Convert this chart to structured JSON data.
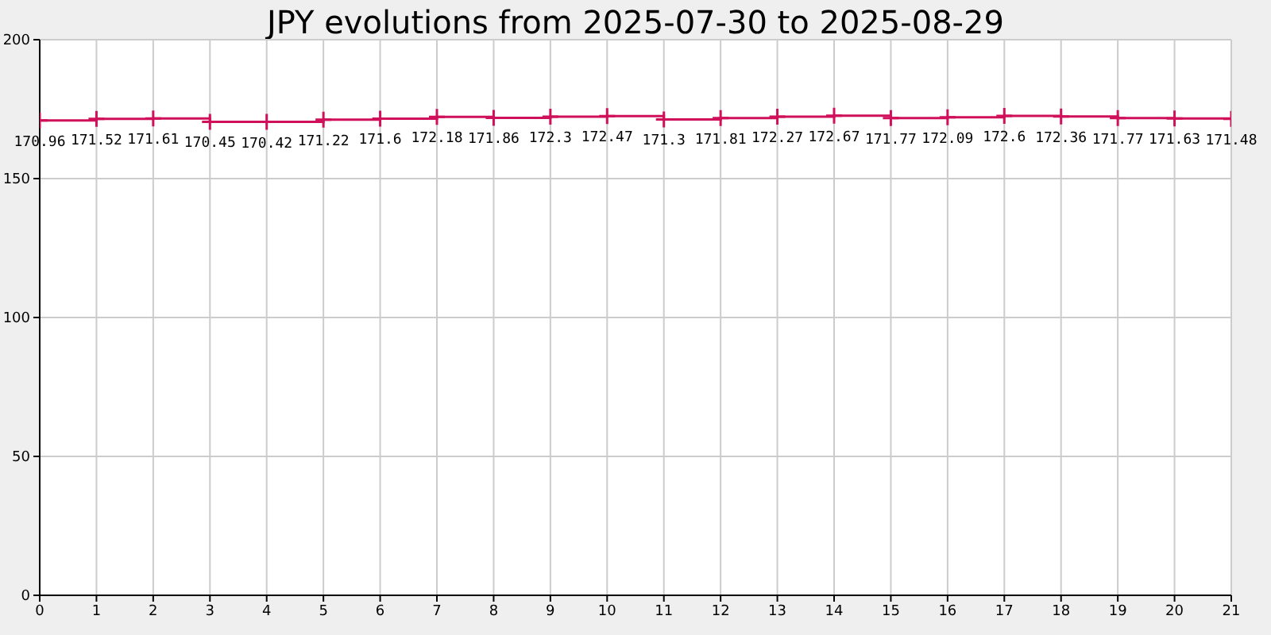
{
  "chart_data": {
    "type": "step",
    "title": "JPY evolutions from 2025-07-30 to 2025-08-29",
    "x": [
      0,
      1,
      2,
      3,
      4,
      5,
      6,
      7,
      8,
      9,
      10,
      11,
      12,
      13,
      14,
      15,
      16,
      17,
      18,
      19,
      20,
      21
    ],
    "series": [
      {
        "color": "#d0105a",
        "values": [
          170.96,
          171.52,
          171.61,
          170.45,
          170.42,
          171.22,
          171.6,
          172.18,
          171.86,
          172.3,
          172.47,
          171.3,
          171.81,
          172.27,
          172.67,
          171.77,
          172.09,
          172.6,
          172.36,
          171.77,
          171.63,
          171.48
        ]
      }
    ],
    "xlim": [
      0,
      21
    ],
    "xticks": [
      0,
      1,
      2,
      3,
      4,
      5,
      6,
      7,
      8,
      9,
      10,
      11,
      12,
      13,
      14,
      15,
      16,
      17,
      18,
      19,
      20,
      21
    ],
    "ylim": [
      0,
      200
    ],
    "yticks": [
      0,
      50,
      100,
      150,
      200
    ],
    "grid": true,
    "marker": "cross",
    "data_labels": true,
    "legend": false
  }
}
